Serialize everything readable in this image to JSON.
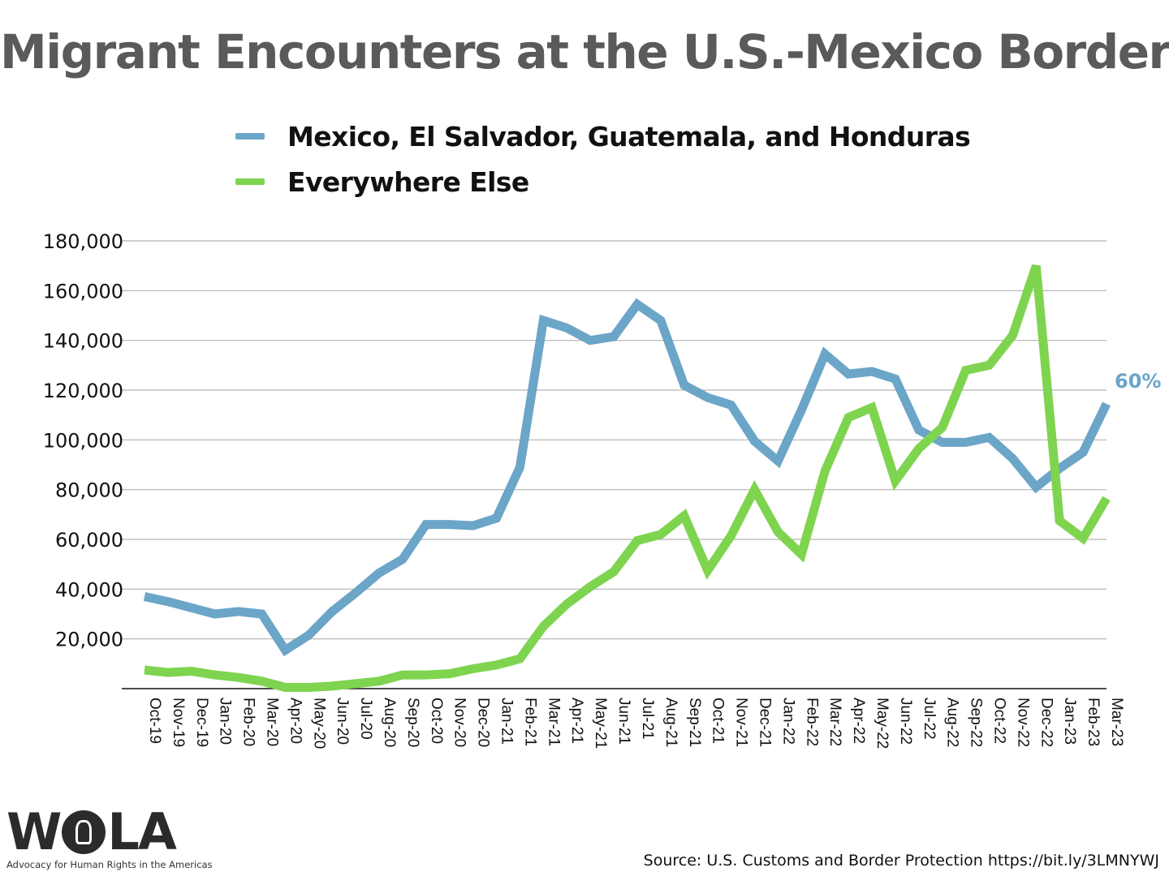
{
  "chart_data": {
    "type": "line",
    "title": "Migrant Encounters at the U.S.-Mexico Border",
    "xlabel": "",
    "ylabel": "",
    "ylim": [
      0,
      180000
    ],
    "yticks": [
      20000,
      40000,
      60000,
      80000,
      100000,
      120000,
      140000,
      160000,
      180000
    ],
    "ytick_labels": [
      "20,000",
      "40,000",
      "60,000",
      "80,000",
      "100,000",
      "120,000",
      "140,000",
      "160,000",
      "180,000"
    ],
    "grid": true,
    "legend_position": "top",
    "categories": [
      "Oct-19",
      "Nov-19",
      "Dec-19",
      "Jan-20",
      "Feb-20",
      "Mar-20",
      "Apr-20",
      "May-20",
      "Jun-20",
      "Jul-20",
      "Aug-20",
      "Sep-20",
      "Oct-20",
      "Nov-20",
      "Dec-20",
      "Jan-21",
      "Feb-21",
      "Mar-21",
      "Apr-21",
      "May-21",
      "Jun-21",
      "Jul-21",
      "Aug-21",
      "Sep-21",
      "Oct-21",
      "Nov-21",
      "Dec-21",
      "Jan-22",
      "Feb-22",
      "Mar-22",
      "Apr-22",
      "May-22",
      "Jun-22",
      "Jul-22",
      "Aug-22",
      "Sep-22",
      "Oct-22",
      "Nov-22",
      "Dec-22",
      "Jan-23",
      "Feb-23",
      "Mar-23"
    ],
    "series": [
      {
        "name": "Mexico, El Salvador, Guatemala, and Honduras",
        "color": "#6ba5c8",
        "values": [
          37000,
          35000,
          32500,
          30000,
          31000,
          30000,
          15500,
          21500,
          31000,
          38500,
          46500,
          52000,
          66000,
          66000,
          65500,
          68500,
          89000,
          148000,
          145000,
          140000,
          141500,
          154500,
          148000,
          122000,
          117000,
          114000,
          99500,
          91500,
          112000,
          134500,
          126500,
          127500,
          124500,
          104000,
          99000,
          99000,
          101000,
          92500,
          81000,
          88500,
          95000,
          114500
        ]
      },
      {
        "name": "Everywhere Else",
        "color": "#7ed44f",
        "values": [
          7500,
          6500,
          7000,
          5500,
          4500,
          3000,
          500,
          500,
          1000,
          2000,
          3000,
          5500,
          5500,
          6000,
          8000,
          9500,
          12000,
          25000,
          34000,
          41000,
          47000,
          59500,
          62000,
          69500,
          47500,
          61500,
          80000,
          63000,
          54000,
          87500,
          109000,
          113000,
          83500,
          96500,
          105000,
          128000,
          130000,
          142000,
          170000,
          67500,
          60500,
          76500
        ]
      }
    ],
    "annotations": [
      {
        "text": "60%",
        "series": "Mexico, El Salvador, Guatemala, and Honduras",
        "category": "Mar-23"
      }
    ]
  },
  "legend": {
    "items": [
      {
        "label": "Mexico, El Salvador, Guatemala, and Honduras",
        "color": "#6ba5c8"
      },
      {
        "label": "Everywhere Else",
        "color": "#7ed44f"
      }
    ]
  },
  "logo": {
    "wordmark": "WOLA",
    "tagline": "Advocacy for Human Rights in the Americas"
  },
  "source": "Source: U.S. Customs and Border Protection https://bit.ly/3LMNYWJ"
}
